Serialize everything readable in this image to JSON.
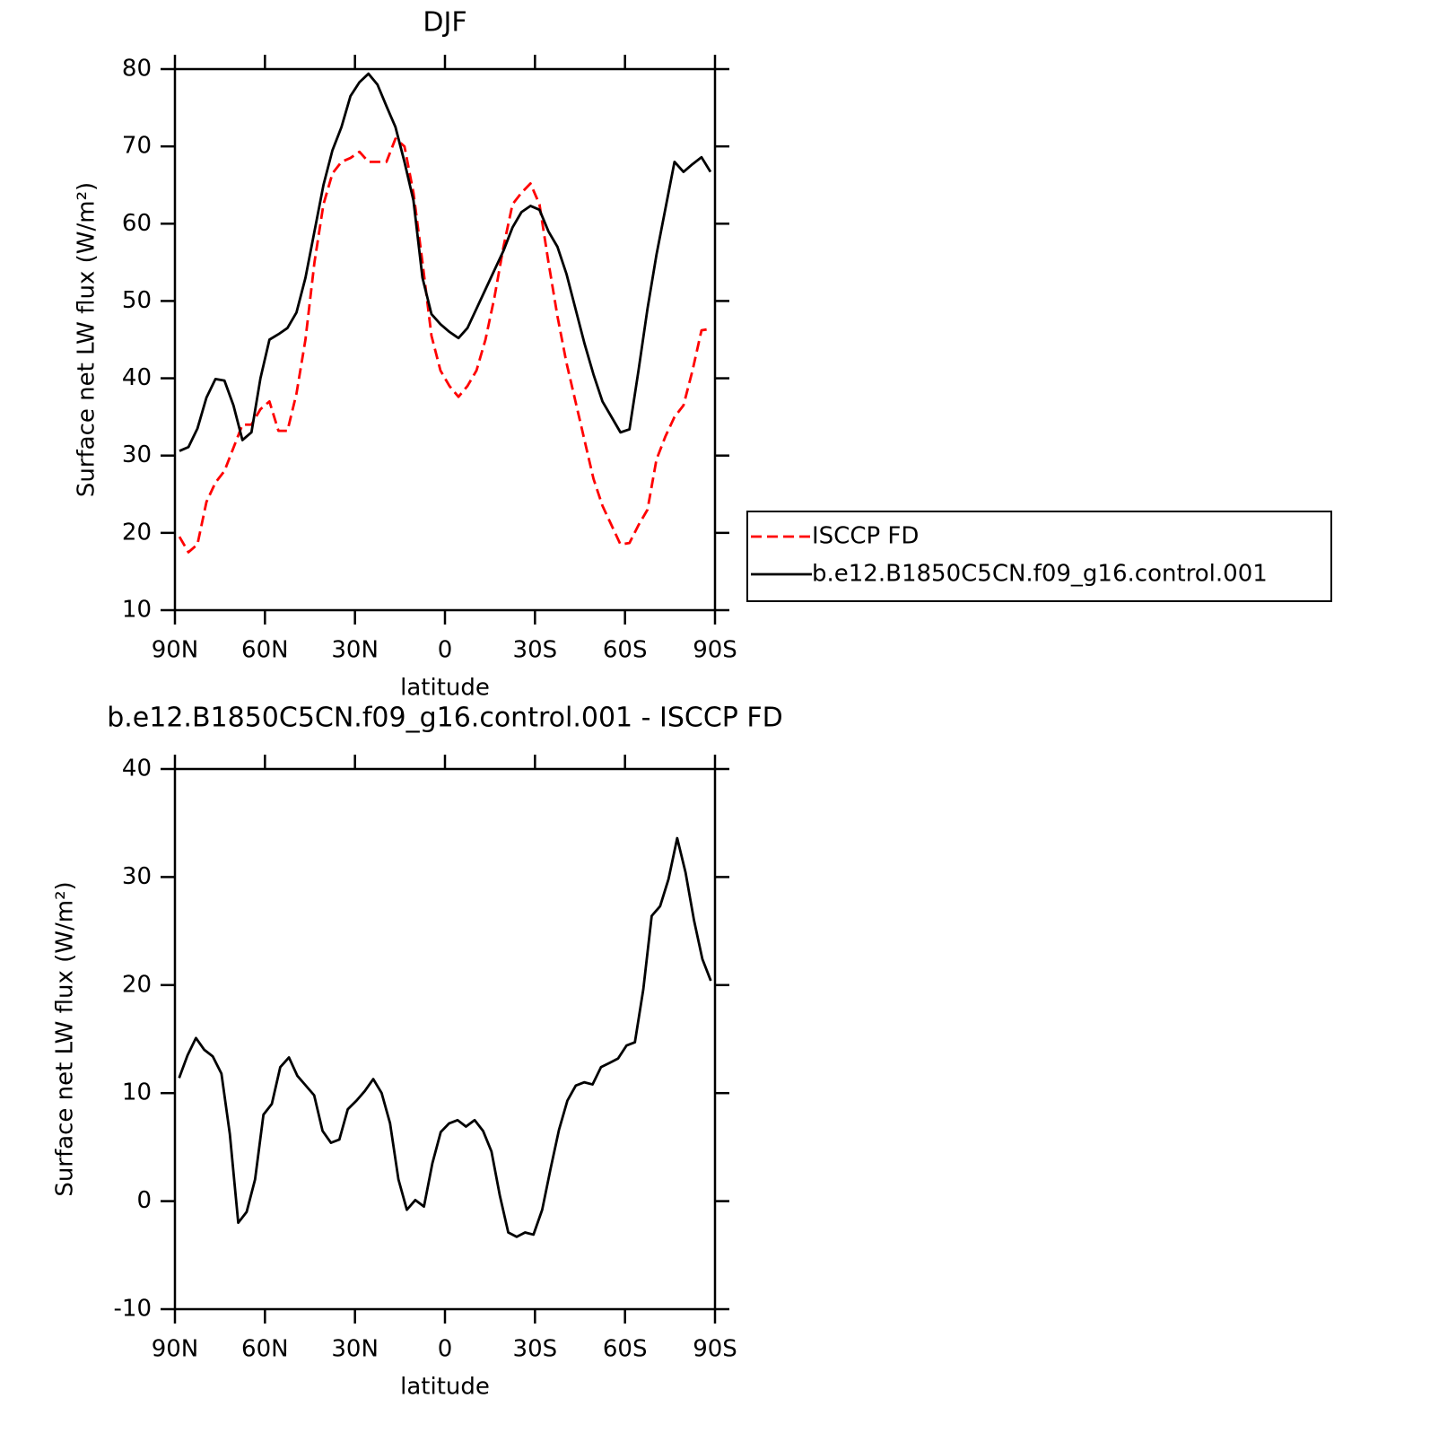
{
  "chart_data": [
    {
      "type": "line",
      "title": "DJF",
      "xlabel": "latitude",
      "ylabel": "Surface net LW flux (W/m²)",
      "xlim": [
        90,
        -90
      ],
      "ylim": [
        10,
        80
      ],
      "xticks": [
        {
          "value": 90,
          "label": "90N"
        },
        {
          "value": 60,
          "label": "60N"
        },
        {
          "value": 30,
          "label": "30N"
        },
        0,
        {
          "value": -30,
          "label": "30S"
        },
        {
          "value": -60,
          "label": "60S"
        },
        {
          "value": -90,
          "label": "90S"
        }
      ],
      "yticks": [
        10,
        20,
        30,
        40,
        50,
        60,
        70,
        80
      ],
      "legend": "outside-right",
      "x": [
        88.5,
        85.5,
        82.5,
        79.5,
        76.5,
        73.5,
        70.5,
        67.5,
        64.5,
        61.5,
        58.5,
        55.5,
        52.5,
        49.5,
        46.5,
        43.5,
        40.5,
        37.5,
        34.5,
        31.5,
        28.5,
        25.5,
        22.5,
        19.5,
        16.5,
        13.5,
        10.5,
        7.5,
        4.5,
        1.5,
        -1.5,
        -4.5,
        -7.5,
        -10.5,
        -13.5,
        -16.5,
        -19.5,
        -22.5,
        -25.5,
        -28.5,
        -31.5,
        -34.5,
        -37.5,
        -40.5,
        -43.5,
        -46.5,
        -49.5,
        -52.5,
        -55.5,
        -58.5,
        -61.5,
        -64.5,
        -67.5,
        -70.5,
        -73.5,
        -76.5,
        -79.5,
        -82.5,
        -85.5,
        -88.5
      ],
      "series": [
        {
          "name": "ISCCP FD",
          "color": "#ff0000",
          "style": "dashed",
          "values": [
            19.5,
            17.5,
            18.5,
            24,
            26.5,
            28,
            31,
            34,
            34,
            36,
            37,
            33.2,
            33.2,
            38,
            45,
            55,
            62.5,
            66.5,
            68,
            68.5,
            69.3,
            68,
            68,
            68,
            71,
            70,
            64,
            55,
            45.5,
            41,
            39,
            37.6,
            39,
            41,
            45,
            50.5,
            57,
            62.5,
            64,
            65.2,
            62.5,
            55,
            48,
            42,
            37,
            32,
            27,
            23.5,
            21,
            18.5,
            18.7,
            21,
            23,
            29.5,
            32.5,
            35,
            36.5,
            41,
            46.2,
            46.4
          ]
        },
        {
          "name": "b.e12.B1850C5CN.f09_g16.control.001",
          "color": "#000000",
          "style": "solid",
          "values": [
            30.6,
            31.1,
            33.5,
            37.5,
            39.9,
            39.7,
            36.5,
            32,
            33,
            40,
            45,
            45.7,
            46.5,
            48.5,
            53,
            59,
            65,
            69.5,
            72.5,
            76.5,
            78.3,
            79.4,
            78,
            75.2,
            72.5,
            68,
            63,
            53,
            48.3,
            47,
            46,
            45.2,
            46.5,
            49,
            51.5,
            54,
            56.5,
            59.5,
            61.5,
            62.3,
            61.8,
            59,
            57,
            53.5,
            49,
            44.5,
            40.5,
            37,
            35,
            33,
            33.4,
            41,
            49,
            56,
            62,
            68,
            66.7,
            67.7,
            68.6,
            66.7
          ]
        }
      ]
    },
    {
      "type": "line",
      "title": "b.e12.B1850C5CN.f09_g16.control.001 - ISCCP FD",
      "xlabel": "latitude",
      "ylabel": "Surface net LW flux (W/m²)",
      "xlim": [
        90,
        -90
      ],
      "ylim": [
        -10,
        40
      ],
      "xticks": [
        {
          "value": 90,
          "label": "90N"
        },
        {
          "value": 60,
          "label": "60N"
        },
        {
          "value": 30,
          "label": "30N"
        },
        0,
        {
          "value": -30,
          "label": "30S"
        },
        {
          "value": -60,
          "label": "60S"
        },
        {
          "value": -90,
          "label": "90S"
        }
      ],
      "yticks": [
        -10,
        0,
        10,
        20,
        30,
        40
      ],
      "x": [
        88.6,
        85.8,
        83.0,
        80.2,
        77.4,
        74.5,
        71.7,
        68.9,
        66.1,
        63.3,
        60.5,
        57.7,
        54.9,
        52.0,
        49.2,
        46.4,
        43.6,
        40.8,
        38.0,
        35.2,
        32.4,
        29.5,
        26.7,
        23.9,
        21.1,
        18.3,
        15.5,
        12.7,
        9.9,
        7.0,
        4.2,
        1.4,
        -1.4,
        -4.2,
        -7.0,
        -9.9,
        -12.7,
        -15.5,
        -18.3,
        -21.1,
        -23.9,
        -26.7,
        -29.5,
        -32.4,
        -35.2,
        -38.0,
        -40.8,
        -43.6,
        -46.4,
        -49.2,
        -52.0,
        -54.9,
        -57.7,
        -60.5,
        -63.3,
        -66.1,
        -68.9,
        -71.7,
        -74.5,
        -77.4,
        -80.2,
        -83.0,
        -85.8,
        -88.6
      ],
      "series": [
        {
          "color": "#000000",
          "style": "solid",
          "values": [
            11.4,
            13.5,
            15.1,
            14,
            13.4,
            11.8,
            6.2,
            -2,
            -1,
            2,
            8,
            9,
            12.4,
            13.3,
            11.6,
            10.7,
            9.8,
            6.5,
            5.4,
            5.7,
            8.5,
            9.3,
            10.2,
            11.3,
            10,
            7.2,
            2,
            -0.8,
            0.1,
            -0.5,
            3.5,
            6.4,
            7.2,
            7.5,
            6.9,
            7.5,
            6.5,
            4.6,
            0.5,
            -2.9,
            -3.3,
            -2.9,
            -3.1,
            -0.8,
            3,
            6.6,
            9.3,
            10.7,
            11,
            10.8,
            12.4,
            12.8,
            13.2,
            14.4,
            14.7,
            19.6,
            26.4,
            27.3,
            29.8,
            33.6,
            30.4,
            26,
            22.4,
            20.4
          ]
        }
      ]
    }
  ]
}
